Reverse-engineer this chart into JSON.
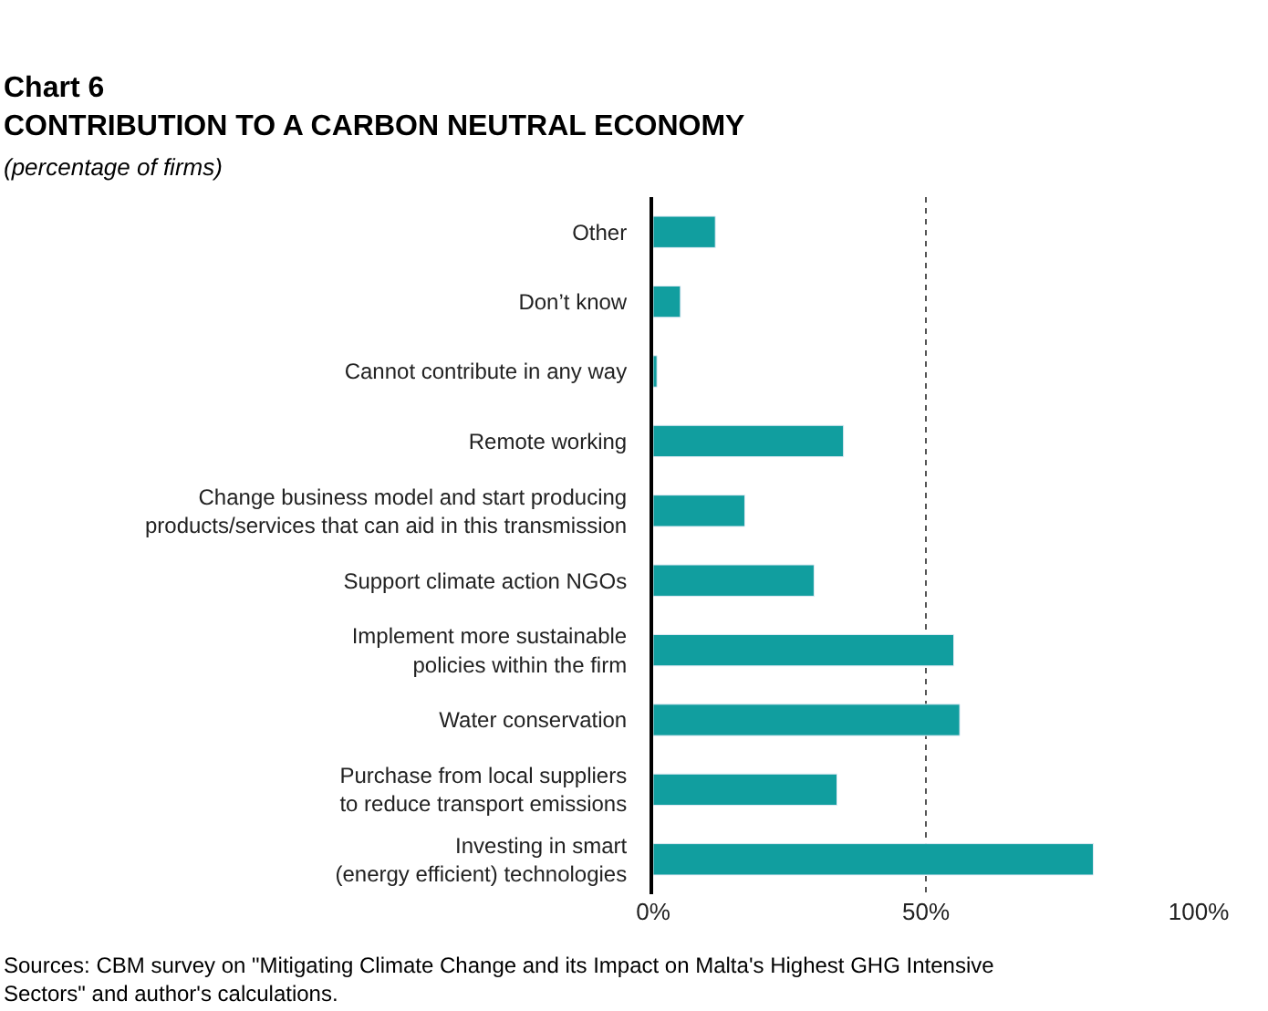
{
  "chart_data": {
    "type": "bar",
    "orientation": "horizontal",
    "title": "Chart 6\nCONTRIBUTION TO A CARBON NEUTRAL ECONOMY",
    "subtitle": "(percentage of firms)",
    "categories": [
      "Other",
      "Don’t know",
      "Cannot contribute in any way",
      "Remote working",
      "Change business model and start producing\nproducts/services that can aid in this transmission",
      "Support climate action NGOs",
      "Implement more sustainable\npolicies within the firm",
      "Water conservation",
      "Purchase from local suppliers\nto reduce transport emissions",
      "Investing in smart\n(energy efficient) technologies"
    ],
    "values": [
      11.4,
      5.0,
      0.7,
      34.9,
      16.8,
      29.5,
      55.1,
      56.2,
      33.7,
      80.7
    ],
    "color": "#119e9f",
    "xlim": [
      0,
      100
    ],
    "xticks": [
      {
        "value": 0,
        "label": "0%"
      },
      {
        "value": 50,
        "label": "50%"
      },
      {
        "value": 100,
        "label": "100%"
      }
    ],
    "grid": "x",
    "legend": false,
    "annotations": [
      "Sources: CBM survey on \"Mitigating Climate Change and its Impact on Malta's Highest GHG Intensive\nSectors\" and author's calculations."
    ]
  }
}
